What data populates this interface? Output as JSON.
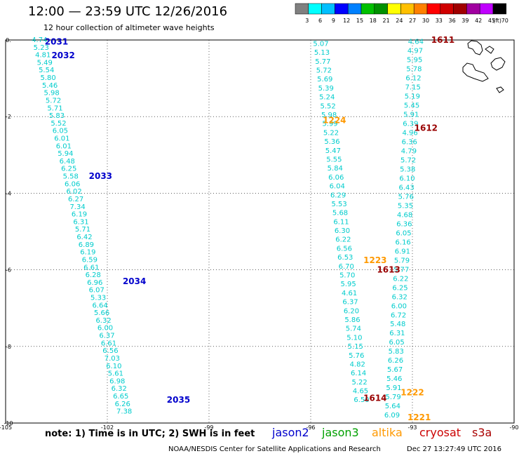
{
  "header": {
    "title": "12:00 — 23:59 UTC 12/26/2016",
    "subtitle": "12 hour collection of altimeter wave heights"
  },
  "colorbar": {
    "labels": [
      "3",
      "6",
      "9",
      "12",
      "15",
      "18",
      "21",
      "24",
      "27",
      "30",
      "33",
      "36",
      "39",
      "42",
      "45",
      "70",
      "(ft)"
    ],
    "colors": [
      "#808080",
      "#00ffff",
      "#00bfff",
      "#0000ff",
      "#0080ff",
      "#00c000",
      "#009000",
      "#ffff00",
      "#ffc000",
      "#ff8000",
      "#ff0000",
      "#d00000",
      "#a00000",
      "#a000a0",
      "#c000ff",
      "#000000"
    ]
  },
  "footer": {
    "note": "note: 1) Time is in UTC; 2) SWH is in feet",
    "legend": [
      {
        "label": "jason2",
        "color": "#0000cc"
      },
      {
        "label": "jason3",
        "color": "#00a000"
      },
      {
        "label": "altika",
        "color": "#ff9900"
      },
      {
        "label": "cryosat",
        "color": "#cc0000"
      },
      {
        "label": "s3a",
        "color": "#aa0000"
      }
    ],
    "credit": "NOAA/NESDIS Center for Satellite Applications and Research",
    "timestamp": "Dec 27 13:27:49 UTC 2016"
  },
  "chart_data": {
    "type": "scatter",
    "xlim": [
      -105,
      -90
    ],
    "ylim": [
      -10,
      0
    ],
    "xticks": [
      "-105",
      "-102",
      "-99",
      "-96",
      "-93",
      "-90"
    ],
    "yticks": [
      "0.",
      "-2",
      "-4",
      "-6",
      "-8",
      "-10"
    ],
    "grid": true,
    "series": [
      {
        "name": "jason2",
        "color": "#00cccc",
        "labelColor": "#0000cc",
        "start": [
          -104.0,
          0.0
        ],
        "end": [
          -101.5,
          -9.7
        ],
        "values": [
          "4.74",
          "5.23",
          "4.81",
          "5.49",
          "5.54",
          "5.80",
          "5.46",
          "5.98",
          "5.72",
          "5.71",
          "5.83",
          "5.52",
          "6.05",
          "6.01",
          "6.01",
          "5.94",
          "6.48",
          "6.25",
          "5.58",
          "6.06",
          "6.02",
          "6.27",
          "7.34",
          "6.19",
          "6.31",
          "5.71",
          "6.42",
          "6.89",
          "6.19",
          "6.59",
          "6.61",
          "6.28",
          "6.96",
          "6.07",
          "5.33",
          "6.64",
          "5.66",
          "6.32",
          "6.00",
          "6.37",
          "6.61",
          "6.56",
          "7.03",
          "6.10",
          "5.61",
          "6.98",
          "6.32",
          "6.65",
          "6.26",
          "7.38"
        ],
        "passes": [
          {
            "label": "2031",
            "lon": -103.5,
            "lat": -0.05
          },
          {
            "label": "2032",
            "lon": -103.3,
            "lat": -0.4
          },
          {
            "label": "2033",
            "lon": -102.2,
            "lat": -3.55
          },
          {
            "label": "2034",
            "lon": -101.2,
            "lat": -6.3
          },
          {
            "label": "2035",
            "lon": -99.9,
            "lat": -9.4
          }
        ]
      },
      {
        "name": "s3a",
        "color": "#00cccc",
        "labelColor": "#990000",
        "start": [
          -95.7,
          -0.1
        ],
        "end": [
          -94.5,
          -9.4
        ],
        "values": [
          "5.07",
          "5.13",
          "5.77",
          "5.72",
          "5.69",
          "5.39",
          "5.24",
          "5.52",
          "5.98",
          "5.99",
          "5.22",
          "5.36",
          "5.47",
          "5.55",
          "5.84",
          "6.06",
          "6.04",
          "6.29",
          "5.53",
          "5.68",
          "6.11",
          "6.30",
          "6.22",
          "6.56",
          "6.53",
          "6.70",
          "5.70",
          "5.95",
          "4.61",
          "6.37",
          "6.20",
          "5.86",
          "5.74",
          "5.10",
          "5.15",
          "5.76",
          "4.82",
          "6.14",
          "5.22",
          "4.65",
          "6.50"
        ],
        "passes": [
          {
            "label": "1614",
            "lon": -94.1,
            "lat": -9.35
          }
        ]
      },
      {
        "name": "altika",
        "color": "#00cccc",
        "labelColor": "#ff9900",
        "start": [
          -92.9,
          -0.05
        ],
        "end": [
          -93.6,
          -9.8
        ],
        "values": [
          "4.64",
          "4.97",
          "5.95",
          "5.78",
          "6.12",
          "7.15",
          "5.19",
          "5.45",
          "5.91",
          "6.39",
          "4.96",
          "6.36",
          "4.79",
          "5.72",
          "5.38",
          "6.10",
          "6.43",
          "5.76",
          "5.35",
          "4.68",
          "6.36",
          "6.05",
          "6.16",
          "6.91",
          "5.79",
          "5.77",
          "6.22",
          "6.25",
          "6.32",
          "6.00",
          "6.72",
          "5.48",
          "6.31",
          "6.05",
          "5.83",
          "6.26",
          "5.67",
          "5.46",
          "5.91",
          "5.79",
          "5.64",
          "6.09"
        ],
        "passes": [
          {
            "label": "1224",
            "lon": -95.3,
            "lat": -2.1
          },
          {
            "label": "1223",
            "lon": -94.1,
            "lat": -5.75
          },
          {
            "label": "1222",
            "lon": -93.0,
            "lat": -9.2
          },
          {
            "label": "1221",
            "lon": -92.8,
            "lat": -9.85
          }
        ]
      },
      {
        "name": "cryosat",
        "color": "#990000",
        "labelColor": "#990000",
        "start": [
          null,
          null
        ],
        "end": [
          null,
          null
        ],
        "values": [],
        "passes": [
          {
            "label": "1611",
            "lon": -92.1,
            "lat": 0.0
          },
          {
            "label": "1612",
            "lon": -92.6,
            "lat": -2.3
          },
          {
            "label": "1613",
            "lon": -93.7,
            "lat": -6.0
          }
        ]
      }
    ],
    "land_feature": "Galapagos Islands coastline (top-right)"
  }
}
